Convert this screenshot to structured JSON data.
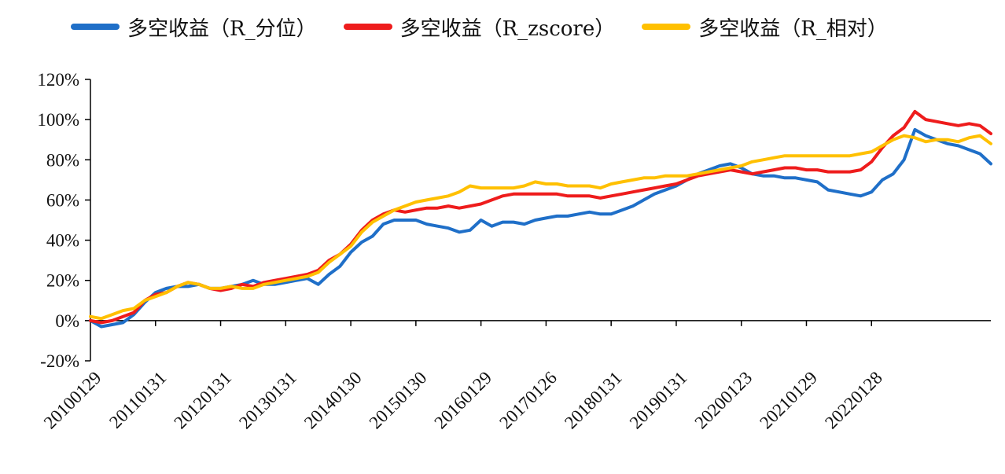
{
  "chart_data": {
    "type": "line",
    "x_tick_labels": [
      "20100129",
      "20110131",
      "20120131",
      "20130131",
      "20140130",
      "20150130",
      "20160129",
      "20170126",
      "20180131",
      "20190131",
      "20200123",
      "20210129",
      "20220128"
    ],
    "y_tick_labels": [
      "120%",
      "100%",
      "80%",
      "60%",
      "40%",
      "20%",
      "0%",
      "-20%"
    ],
    "y_ticks": [
      120,
      100,
      80,
      60,
      40,
      20,
      0,
      -20
    ],
    "ylim": [
      -20,
      120
    ],
    "x_months_span": 156,
    "grid": false,
    "legend_position": "top",
    "series": [
      {
        "name": "多空收益（R_分位）",
        "color": "#1F6FC8",
        "points": [
          [
            0,
            0
          ],
          [
            2,
            -3
          ],
          [
            4,
            -2
          ],
          [
            6,
            -1
          ],
          [
            8,
            3
          ],
          [
            10,
            9
          ],
          [
            12,
            14
          ],
          [
            14,
            16
          ],
          [
            16,
            17
          ],
          [
            18,
            17
          ],
          [
            20,
            18
          ],
          [
            22,
            16
          ],
          [
            24,
            16
          ],
          [
            26,
            17
          ],
          [
            28,
            18
          ],
          [
            30,
            20
          ],
          [
            32,
            18
          ],
          [
            34,
            18
          ],
          [
            36,
            19
          ],
          [
            38,
            20
          ],
          [
            40,
            21
          ],
          [
            42,
            18
          ],
          [
            44,
            23
          ],
          [
            46,
            27
          ],
          [
            48,
            34
          ],
          [
            50,
            39
          ],
          [
            52,
            42
          ],
          [
            54,
            48
          ],
          [
            56,
            50
          ],
          [
            58,
            50
          ],
          [
            60,
            50
          ],
          [
            62,
            48
          ],
          [
            64,
            47
          ],
          [
            66,
            46
          ],
          [
            68,
            44
          ],
          [
            70,
            45
          ],
          [
            72,
            50
          ],
          [
            74,
            47
          ],
          [
            76,
            49
          ],
          [
            78,
            49
          ],
          [
            80,
            48
          ],
          [
            82,
            50
          ],
          [
            84,
            51
          ],
          [
            86,
            52
          ],
          [
            88,
            52
          ],
          [
            90,
            53
          ],
          [
            92,
            54
          ],
          [
            94,
            53
          ],
          [
            96,
            53
          ],
          [
            98,
            55
          ],
          [
            100,
            57
          ],
          [
            102,
            60
          ],
          [
            104,
            63
          ],
          [
            106,
            65
          ],
          [
            108,
            67
          ],
          [
            110,
            70
          ],
          [
            112,
            73
          ],
          [
            114,
            75
          ],
          [
            116,
            77
          ],
          [
            118,
            78
          ],
          [
            120,
            76
          ],
          [
            122,
            73
          ],
          [
            124,
            72
          ],
          [
            126,
            72
          ],
          [
            128,
            71
          ],
          [
            130,
            71
          ],
          [
            132,
            70
          ],
          [
            134,
            69
          ],
          [
            136,
            65
          ],
          [
            138,
            64
          ],
          [
            140,
            63
          ],
          [
            142,
            62
          ],
          [
            144,
            64
          ],
          [
            146,
            70
          ],
          [
            148,
            73
          ],
          [
            150,
            80
          ],
          [
            152,
            95
          ],
          [
            154,
            92
          ],
          [
            156,
            90
          ],
          [
            158,
            88
          ],
          [
            160,
            87
          ],
          [
            162,
            85
          ],
          [
            164,
            83
          ],
          [
            166,
            78
          ]
        ]
      },
      {
        "name": "多空收益（R_zscore）",
        "color": "#EE1C1C",
        "points": [
          [
            0,
            0
          ],
          [
            2,
            -1
          ],
          [
            4,
            0
          ],
          [
            6,
            2
          ],
          [
            8,
            4
          ],
          [
            10,
            10
          ],
          [
            12,
            13
          ],
          [
            14,
            14
          ],
          [
            16,
            17
          ],
          [
            18,
            19
          ],
          [
            20,
            18
          ],
          [
            22,
            16
          ],
          [
            24,
            15
          ],
          [
            26,
            16
          ],
          [
            28,
            18
          ],
          [
            30,
            17
          ],
          [
            32,
            19
          ],
          [
            34,
            20
          ],
          [
            36,
            21
          ],
          [
            38,
            22
          ],
          [
            40,
            23
          ],
          [
            42,
            25
          ],
          [
            44,
            30
          ],
          [
            46,
            33
          ],
          [
            48,
            38
          ],
          [
            50,
            45
          ],
          [
            52,
            50
          ],
          [
            54,
            53
          ],
          [
            56,
            55
          ],
          [
            58,
            54
          ],
          [
            60,
            55
          ],
          [
            62,
            56
          ],
          [
            64,
            56
          ],
          [
            66,
            57
          ],
          [
            68,
            56
          ],
          [
            70,
            57
          ],
          [
            72,
            58
          ],
          [
            74,
            60
          ],
          [
            76,
            62
          ],
          [
            78,
            63
          ],
          [
            80,
            63
          ],
          [
            82,
            63
          ],
          [
            84,
            63
          ],
          [
            86,
            63
          ],
          [
            88,
            62
          ],
          [
            90,
            62
          ],
          [
            92,
            62
          ],
          [
            94,
            61
          ],
          [
            96,
            62
          ],
          [
            98,
            63
          ],
          [
            100,
            64
          ],
          [
            102,
            65
          ],
          [
            104,
            66
          ],
          [
            106,
            67
          ],
          [
            108,
            68
          ],
          [
            110,
            70
          ],
          [
            112,
            72
          ],
          [
            114,
            73
          ],
          [
            116,
            74
          ],
          [
            118,
            75
          ],
          [
            120,
            74
          ],
          [
            122,
            73
          ],
          [
            124,
            74
          ],
          [
            126,
            75
          ],
          [
            128,
            76
          ],
          [
            130,
            76
          ],
          [
            132,
            75
          ],
          [
            134,
            75
          ],
          [
            136,
            74
          ],
          [
            138,
            74
          ],
          [
            140,
            74
          ],
          [
            142,
            75
          ],
          [
            144,
            79
          ],
          [
            146,
            86
          ],
          [
            148,
            92
          ],
          [
            150,
            96
          ],
          [
            152,
            104
          ],
          [
            154,
            100
          ],
          [
            156,
            99
          ],
          [
            158,
            98
          ],
          [
            160,
            97
          ],
          [
            162,
            98
          ],
          [
            164,
            97
          ],
          [
            166,
            93
          ]
        ]
      },
      {
        "name": "多空收益（R_相对）",
        "color": "#FFC000",
        "points": [
          [
            0,
            2
          ],
          [
            2,
            1
          ],
          [
            4,
            3
          ],
          [
            6,
            5
          ],
          [
            8,
            6
          ],
          [
            10,
            10
          ],
          [
            12,
            12
          ],
          [
            14,
            14
          ],
          [
            16,
            17
          ],
          [
            18,
            19
          ],
          [
            20,
            18
          ],
          [
            22,
            16
          ],
          [
            24,
            16
          ],
          [
            26,
            17
          ],
          [
            28,
            16
          ],
          [
            30,
            16
          ],
          [
            32,
            18
          ],
          [
            34,
            19
          ],
          [
            36,
            20
          ],
          [
            38,
            21
          ],
          [
            40,
            22
          ],
          [
            42,
            24
          ],
          [
            44,
            29
          ],
          [
            46,
            33
          ],
          [
            48,
            37
          ],
          [
            50,
            44
          ],
          [
            52,
            49
          ],
          [
            54,
            52
          ],
          [
            56,
            55
          ],
          [
            58,
            57
          ],
          [
            60,
            59
          ],
          [
            62,
            60
          ],
          [
            64,
            61
          ],
          [
            66,
            62
          ],
          [
            68,
            64
          ],
          [
            70,
            67
          ],
          [
            72,
            66
          ],
          [
            74,
            66
          ],
          [
            76,
            66
          ],
          [
            78,
            66
          ],
          [
            80,
            67
          ],
          [
            82,
            69
          ],
          [
            84,
            68
          ],
          [
            86,
            68
          ],
          [
            88,
            67
          ],
          [
            90,
            67
          ],
          [
            92,
            67
          ],
          [
            94,
            66
          ],
          [
            96,
            68
          ],
          [
            98,
            69
          ],
          [
            100,
            70
          ],
          [
            102,
            71
          ],
          [
            104,
            71
          ],
          [
            106,
            72
          ],
          [
            108,
            72
          ],
          [
            110,
            72
          ],
          [
            112,
            73
          ],
          [
            114,
            74
          ],
          [
            116,
            75
          ],
          [
            118,
            76
          ],
          [
            120,
            77
          ],
          [
            122,
            79
          ],
          [
            124,
            80
          ],
          [
            126,
            81
          ],
          [
            128,
            82
          ],
          [
            130,
            82
          ],
          [
            132,
            82
          ],
          [
            134,
            82
          ],
          [
            136,
            82
          ],
          [
            138,
            82
          ],
          [
            140,
            82
          ],
          [
            142,
            83
          ],
          [
            144,
            84
          ],
          [
            146,
            87
          ],
          [
            148,
            90
          ],
          [
            150,
            92
          ],
          [
            152,
            91
          ],
          [
            154,
            89
          ],
          [
            156,
            90
          ],
          [
            158,
            90
          ],
          [
            160,
            89
          ],
          [
            162,
            91
          ],
          [
            164,
            92
          ],
          [
            166,
            88
          ]
        ]
      }
    ]
  }
}
